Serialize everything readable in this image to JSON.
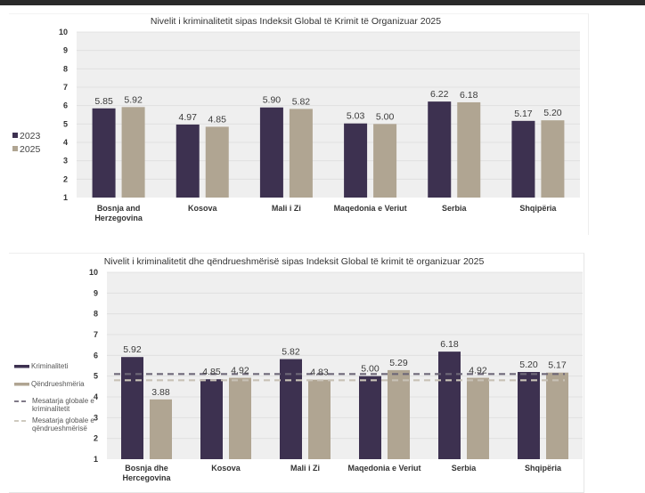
{
  "chart_data": [
    {
      "type": "bar",
      "title": "Nivelit i kriminalitetit sipas Indeksit Global të Krimit të Organizuar 2025",
      "xlabel": "",
      "ylabel": "",
      "ylim": [
        1,
        10
      ],
      "yticks": [
        "1",
        "2",
        "3",
        "4",
        "5",
        "6",
        "7",
        "8",
        "9",
        "10"
      ],
      "grid": true,
      "legend_position": "left",
      "categories": [
        [
          "Bosnja and",
          "Herzegovina"
        ],
        [
          "Kosova"
        ],
        [
          "Mali i Zi"
        ],
        [
          "Maqedonia e Veriut"
        ],
        [
          "Serbia"
        ],
        [
          "Shqipëria"
        ]
      ],
      "series": [
        {
          "name": "2023",
          "color": "#3d3150",
          "values": [
            5.85,
            4.97,
            5.9,
            5.03,
            6.22,
            5.17
          ],
          "labels": [
            "5.85",
            "4.97",
            "5.90",
            "5.03",
            "6.22",
            "5.17"
          ]
        },
        {
          "name": "2025",
          "color": "#b0a592",
          "values": [
            5.92,
            4.85,
            5.82,
            5.0,
            6.18,
            5.2
          ],
          "labels": [
            "5.92",
            "4.85",
            "5.82",
            "5.00",
            "6.18",
            "5.20"
          ]
        }
      ]
    },
    {
      "type": "bar",
      "title": "Nivelit i kriminalitetit dhe qëndrueshmërisë sipas Indeksit Global të krimit të organizuar 2025",
      "xlabel": "",
      "ylabel": "",
      "ylim": [
        1,
        10
      ],
      "yticks": [
        "1",
        "2",
        "3",
        "4",
        "5",
        "6",
        "7",
        "8",
        "9",
        "10"
      ],
      "grid": true,
      "legend_position": "left",
      "categories": [
        [
          "Bosnja dhe",
          "Hercegovina"
        ],
        [
          "Kosova"
        ],
        [
          "Mali i Zi"
        ],
        [
          "Maqedonia e Veriut"
        ],
        [
          "Serbia"
        ],
        [
          "Shqipëria"
        ]
      ],
      "series": [
        {
          "name": "Kriminaliteti",
          "color": "#3d3150",
          "values": [
            5.92,
            4.85,
            5.82,
            5.0,
            6.18,
            5.2
          ],
          "labels": [
            "5.92",
            "4.85",
            "5.82",
            "5.00",
            "6.18",
            "5.20"
          ]
        },
        {
          "name": "Qëndrueshmëria",
          "color": "#b0a592",
          "values": [
            3.88,
            4.92,
            4.83,
            5.29,
            4.92,
            5.17
          ],
          "labels": [
            "3.88",
            "4.92",
            "4.83",
            "5.29",
            "4.92",
            "5.17"
          ]
        }
      ],
      "reference_lines": [
        {
          "name": [
            "Mesatarja globale e",
            "kriminalitetit"
          ],
          "value": 5.1,
          "color": "#6e6878"
        },
        {
          "name": [
            "Mesatarja globale e",
            "qëndrueshmërisë"
          ],
          "value": 4.8,
          "color": "#c8c2b6"
        }
      ]
    }
  ]
}
